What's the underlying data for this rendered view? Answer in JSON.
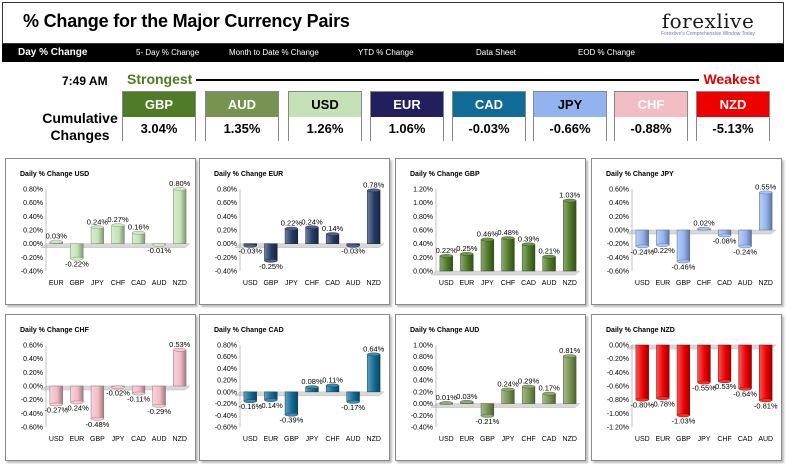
{
  "header": {
    "title": "% Change for the Major Currency Pairs",
    "logo_brand": "forexlive",
    "logo_tagline": "Forexlive's Comprehensive Window Today"
  },
  "nav": {
    "tabs": [
      {
        "label": "Day % Change",
        "active": true
      },
      {
        "label": "5- Day % Change",
        "active": false
      },
      {
        "label": "Month to Date % Change",
        "active": false
      },
      {
        "label": "YTD % Change",
        "active": false
      },
      {
        "label": "Data Sheet",
        "active": false
      },
      {
        "label": "EOD % Change",
        "active": false
      }
    ]
  },
  "ranking": {
    "time": "7:49 AM",
    "strongest_label": "Strongest",
    "weakest_label": "Weakest",
    "cumulative_label_line1": "Cumulative",
    "cumulative_label_line2": "Changes",
    "cards": [
      {
        "currency": "GBP",
        "value": "3.04%",
        "color": "#4f7a26",
        "text_color": "#ffffff"
      },
      {
        "currency": "AUD",
        "value": "1.35%",
        "color": "#76934f",
        "text_color": "#ffffff"
      },
      {
        "currency": "USD",
        "value": "1.26%",
        "color": "#c5e2b6",
        "text_color": "#000000"
      },
      {
        "currency": "EUR",
        "value": "1.06%",
        "color": "#221f5f",
        "text_color": "#ffffff"
      },
      {
        "currency": "CAD",
        "value": "-0.03%",
        "color": "#106b96",
        "text_color": "#ffffff"
      },
      {
        "currency": "JPY",
        "value": "-0.66%",
        "color": "#93b3f0",
        "text_color": "#000000"
      },
      {
        "currency": "CHF",
        "value": "-0.88%",
        "color": "#f2bcc5",
        "text_color": "#ffffff"
      },
      {
        "currency": "NZD",
        "value": "-5.13%",
        "color": "#ef0000",
        "text_color": "#ffffff"
      }
    ]
  },
  "chart_data": [
    {
      "type": "bar",
      "title": "Daily % Change USD",
      "categories": [
        "EUR",
        "GBP",
        "JPY",
        "CHF",
        "CAD",
        "AUD",
        "NZD"
      ],
      "values": [
        0.03,
        -0.22,
        0.24,
        0.27,
        0.16,
        -0.01,
        0.8
      ],
      "value_labels": [
        "0.03%",
        "-0.22%",
        "0.24%",
        "0.27%",
        "0.16%",
        "-0.01%",
        "0.80%"
      ],
      "yticks": [
        "0.80%",
        "0.60%",
        "0.40%",
        "0.20%",
        "0.00%",
        "-0.20%",
        "-0.40%"
      ],
      "ylim": [
        -0.4,
        0.8
      ],
      "color": "#c5e2b6"
    },
    {
      "type": "bar",
      "title": "Daily % Change EUR",
      "categories": [
        "USD",
        "GBP",
        "JPY",
        "CHF",
        "CAD",
        "AUD",
        "NZD"
      ],
      "values": [
        -0.03,
        -0.25,
        0.22,
        0.24,
        0.14,
        -0.03,
        0.78
      ],
      "value_labels": [
        "-0.03%",
        "-0.25%",
        "0.22%",
        "0.24%",
        "0.14%",
        "-0.03%",
        "0.78%"
      ],
      "yticks": [
        "0.80%",
        "0.60%",
        "0.40%",
        "0.20%",
        "0.00%",
        "-0.20%",
        "-0.40%"
      ],
      "ylim": [
        -0.4,
        0.8
      ],
      "color": "#243a66"
    },
    {
      "type": "bar",
      "title": "Daily % Change GBP",
      "categories": [
        "USD",
        "EUR",
        "JPY",
        "CHF",
        "CAD",
        "AUD",
        "NZD"
      ],
      "values": [
        0.22,
        0.25,
        0.46,
        0.48,
        0.39,
        0.21,
        1.03
      ],
      "value_labels": [
        "0.22%",
        "0.25%",
        "0.46%",
        "0.48%",
        "0.39%",
        "0.21%",
        "1.03%"
      ],
      "yticks": [
        "1.20%",
        "1.00%",
        "0.80%",
        "0.60%",
        "0.40%",
        "0.20%",
        "0.00%"
      ],
      "ylim": [
        0,
        1.2
      ],
      "color": "#4f7a26"
    },
    {
      "type": "bar",
      "title": "Daily % Change JPY",
      "categories": [
        "USD",
        "EUR",
        "GBP",
        "CHF",
        "CAD",
        "AUD",
        "NZD"
      ],
      "values": [
        -0.24,
        -0.22,
        -0.46,
        0.02,
        -0.08,
        -0.24,
        0.55
      ],
      "value_labels": [
        "-0.24%",
        "-0.22%",
        "-0.46%",
        "0.02%",
        "-0.08%",
        "-0.24%",
        "0.55%"
      ],
      "yticks": [
        "0.60%",
        "0.40%",
        "0.20%",
        "0.00%",
        "-0.20%",
        "-0.40%",
        "-0.60%"
      ],
      "ylim": [
        -0.6,
        0.6
      ],
      "color": "#93b3f0"
    },
    {
      "type": "bar",
      "title": "Daily % Change CHF",
      "categories": [
        "USD",
        "EUR",
        "GBP",
        "JPY",
        "CAD",
        "AUD",
        "NZD"
      ],
      "values": [
        -0.27,
        -0.24,
        -0.48,
        -0.02,
        -0.11,
        -0.29,
        0.53
      ],
      "value_labels": [
        "-0.27%",
        "-0.24%",
        "-0.48%",
        "-0.02%",
        "-0.11%",
        "-0.29%",
        "0.53%"
      ],
      "yticks": [
        "0.60%",
        "0.40%",
        "0.20%",
        "0.00%",
        "-0.20%",
        "-0.40%",
        "-0.60%"
      ],
      "ylim": [
        -0.6,
        0.6
      ],
      "color": "#f2bcc5"
    },
    {
      "type": "bar",
      "title": "Daily % Change CAD",
      "categories": [
        "USD",
        "EUR",
        "GBP",
        "JPY",
        "CHF",
        "AUD",
        "NZD"
      ],
      "values": [
        -0.16,
        -0.14,
        -0.39,
        0.08,
        0.11,
        -0.17,
        0.64
      ],
      "value_labels": [
        "-0.16%",
        "-0.14%",
        "-0.39%",
        "0.08%",
        "0.11%",
        "-0.17%",
        "0.64%"
      ],
      "yticks": [
        "0.80%",
        "0.60%",
        "0.40%",
        "0.20%",
        "0.00%",
        "-0.20%",
        "-0.40%",
        "-0.60%"
      ],
      "ylim": [
        -0.6,
        0.8
      ],
      "color": "#106b96"
    },
    {
      "type": "bar",
      "title": "Daily % Change AUD",
      "categories": [
        "USD",
        "EUR",
        "GBP",
        "JPY",
        "CHF",
        "CAD",
        "NZD"
      ],
      "values": [
        0.01,
        0.03,
        -0.21,
        0.24,
        0.29,
        0.17,
        0.81
      ],
      "value_labels": [
        "0.01%",
        "0.03%",
        "-0.21%",
        "0.24%",
        "0.29%",
        "0.17%",
        "0.81%"
      ],
      "yticks": [
        "1.00%",
        "0.80%",
        "0.60%",
        "0.40%",
        "0.20%",
        "0.00%",
        "-0.20%",
        "-0.40%"
      ],
      "ylim": [
        -0.4,
        1.0
      ],
      "color": "#76934f"
    },
    {
      "type": "bar",
      "title": "Daily % Change NZD",
      "categories": [
        "USD",
        "EUR",
        "GBP",
        "JPY",
        "CHF",
        "CAD",
        "AUD"
      ],
      "values": [
        -0.8,
        -0.78,
        -1.03,
        -0.55,
        -0.53,
        -0.64,
        -0.81
      ],
      "value_labels": [
        "-0.80%",
        "-0.78%",
        "-1.03%",
        "-0.55%",
        "-0.53%",
        "-0.64%",
        "-0.81%"
      ],
      "yticks": [
        "0.00%",
        "-0.20%",
        "-0.40%",
        "-0.60%",
        "-0.80%",
        "-1.00%",
        "-1.20%"
      ],
      "ylim": [
        -1.2,
        0
      ],
      "color": "#ef0000"
    }
  ]
}
